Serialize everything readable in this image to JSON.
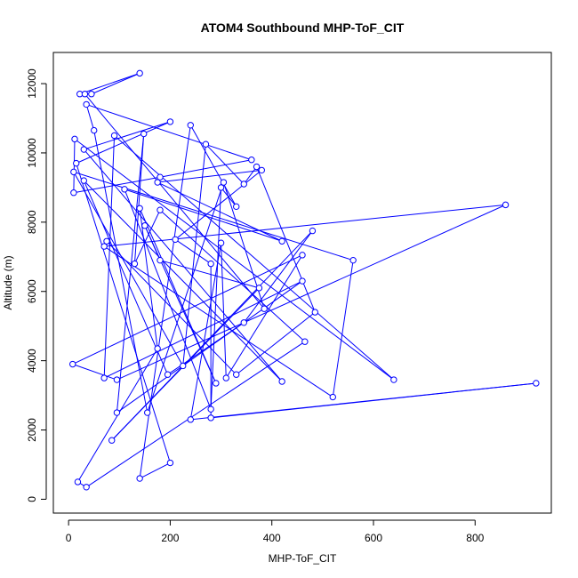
{
  "chart_data": {
    "type": "line",
    "title": "ATOM4 Southbound MHP-ToF_CIT",
    "xlabel": "MHP-ToF_CIT",
    "ylabel": "Altitude (m)",
    "xlim": [
      -30,
      950
    ],
    "ylim": [
      -400,
      12900
    ],
    "xticks": [
      0,
      200,
      400,
      600,
      800
    ],
    "yticks": [
      0,
      2000,
      4000,
      6000,
      8000,
      10000,
      12000
    ],
    "series_color": "#0000ff",
    "markers": "open-circle",
    "grid": false,
    "legend": "none",
    "series": [
      {
        "x": [
          45,
          140,
          22,
          32,
          385,
          305,
          155,
          50,
          35,
          360,
          180,
          10,
          12,
          640,
          90,
          70,
          460,
          95,
          148,
          130,
          180,
          465,
          35,
          18,
          175,
          140,
          290,
          150,
          180,
          375,
          85,
          480,
          345,
          195,
          30,
          420,
          30,
          200,
          15,
          200,
          140,
          240,
          330,
          300,
          280,
          110,
          420,
          175,
          380,
          210,
          280,
          280,
          920,
          240,
          300,
          310,
          460,
          8,
          95,
          860,
          70,
          520,
          560,
          10,
          225,
          270,
          345,
          370,
          485,
          330,
          75
        ],
        "y": [
          11700,
          12300,
          11700,
          11700,
          5500,
          9150,
          2500,
          10650,
          11400,
          9800,
          9300,
          8850,
          10400,
          3450,
          10500,
          3500,
          6300,
          2500,
          10550,
          6800,
          8350,
          4550,
          350,
          500,
          4350,
          8400,
          3350,
          7900,
          6900,
          6100,
          1700,
          7750,
          5100,
          3600,
          9200,
          3400,
          10100,
          10900,
          9700,
          1050,
          600,
          10800,
          8450,
          9000,
          2600,
          8950,
          7450,
          9150,
          9500,
          7500,
          6800,
          2350,
          3350,
          2300,
          7400,
          3500,
          7050,
          3900,
          3450,
          8500,
          7300,
          2950,
          6900,
          9450,
          3850,
          10250,
          9100,
          9600,
          5400,
          3600,
          7450
        ]
      }
    ]
  }
}
